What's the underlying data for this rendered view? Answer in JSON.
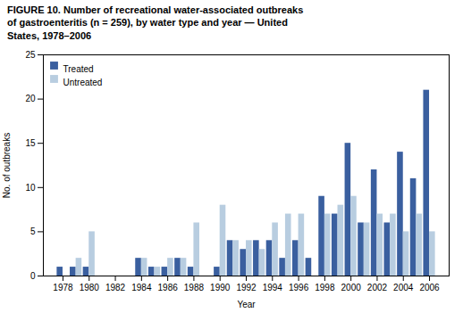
{
  "chart_data": {
    "type": "bar",
    "title": "FIGURE 10.  Number of recreational water-associated outbreaks\nof gastroenteritis (n = 259), by water type and year — United\nStates, 1978–2006",
    "xlabel": "Year",
    "ylabel": "No. of outbreaks",
    "x": [
      1978,
      1979,
      1980,
      1981,
      1984,
      1985,
      1986,
      1987,
      1988,
      1989,
      1990,
      1991,
      1992,
      1993,
      1994,
      1995,
      1996,
      1997,
      1998,
      1999,
      2000,
      2001,
      2002,
      2003,
      2004,
      2005,
      2006
    ],
    "series": [
      {
        "name": "Treated",
        "color": "#3a5f9f",
        "values": [
          1,
          1,
          1,
          0,
          2,
          1,
          1,
          2,
          1,
          0,
          1,
          4,
          3,
          4,
          4,
          2,
          4,
          2,
          9,
          7,
          15,
          6,
          12,
          6,
          14,
          11,
          21
        ]
      },
      {
        "name": "Untreated",
        "color": "#b8cde0",
        "values": [
          0,
          2,
          5,
          0,
          2,
          1,
          2,
          2,
          6,
          0,
          8,
          4,
          4,
          3,
          6,
          7,
          7,
          0,
          7,
          8,
          9,
          6,
          7,
          7,
          5,
          7,
          5
        ]
      }
    ],
    "xlim": [
      1976.5,
      2007.5
    ],
    "xticks": [
      1978,
      1980,
      1982,
      1984,
      1986,
      1988,
      1990,
      1992,
      1994,
      1996,
      1998,
      2000,
      2002,
      2004,
      2006
    ],
    "ylim": [
      0,
      25
    ],
    "yticks": [
      0,
      5,
      10,
      15,
      20,
      25
    ],
    "grid": false,
    "legend": "upper left"
  }
}
